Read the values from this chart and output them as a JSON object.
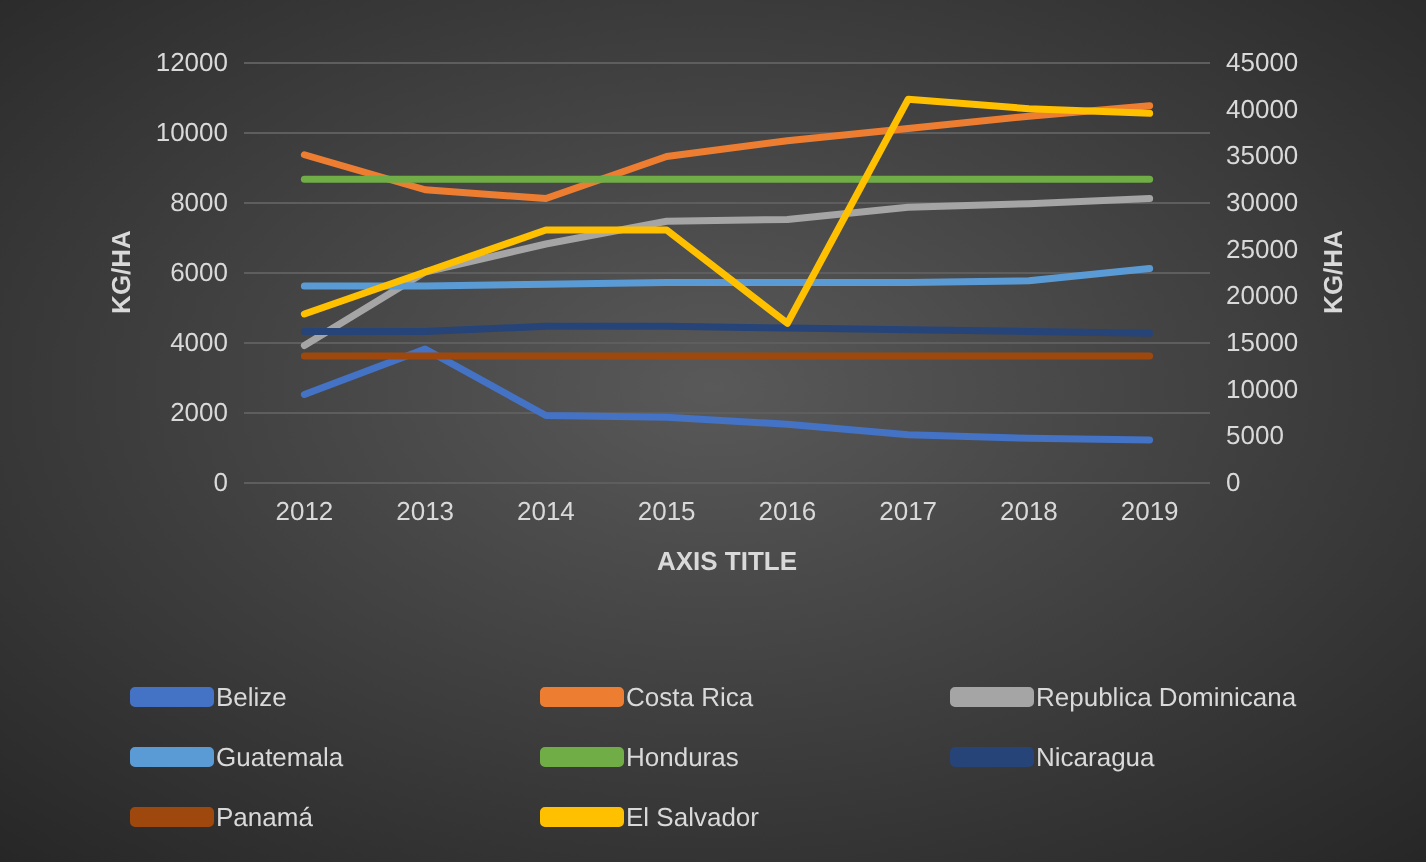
{
  "chart_data": {
    "type": "line",
    "xlabel": "AXIS TITLE",
    "ylabel": "KG/HA",
    "y2label": "KG/HA",
    "categories": [
      "2012",
      "2013",
      "2014",
      "2015",
      "2016",
      "2017",
      "2018",
      "2019"
    ],
    "ylim": [
      0,
      12000
    ],
    "yticks": [
      0,
      2000,
      4000,
      6000,
      8000,
      10000,
      12000
    ],
    "y2lim": [
      0,
      45000
    ],
    "y2ticks": [
      0,
      5000,
      10000,
      15000,
      20000,
      25000,
      30000,
      35000,
      40000,
      45000
    ],
    "grid": "y",
    "legend": "bottom",
    "marker": "none",
    "line_style": "solid",
    "series": [
      {
        "name": "Belize",
        "color": "#4472c4",
        "values": [
          2500,
          3800,
          1900,
          1850,
          1650,
          1350,
          1250,
          1200
        ]
      },
      {
        "name": "Costa Rica",
        "color": "#ed7d31",
        "values": [
          9350,
          8350,
          8100,
          9300,
          9750,
          10100,
          10450,
          10750
        ]
      },
      {
        "name": "Republica Dominicana",
        "color": "#a5a5a5",
        "values": [
          3900,
          6000,
          6800,
          7450,
          7500,
          7850,
          7950,
          8100
        ]
      },
      {
        "name": "Guatemala",
        "color": "#5b9bd5",
        "values": [
          5600,
          5600,
          5650,
          5700,
          5700,
          5700,
          5750,
          6100
        ]
      },
      {
        "name": "Honduras",
        "color": "#70ad47",
        "values": [
          8650,
          8650,
          8650,
          8650,
          8650,
          8650,
          8650,
          8650
        ]
      },
      {
        "name": "Nicaragua",
        "color": "#264478",
        "values": [
          4300,
          4300,
          4450,
          4450,
          4400,
          4350,
          4300,
          4250
        ]
      },
      {
        "name": "Panamá",
        "color": "#9e480e",
        "values": [
          3600,
          3600,
          3600,
          3600,
          3600,
          3600,
          3600,
          3600
        ]
      },
      {
        "name": "El Salvador",
        "color": "#ffc000",
        "axis": "y2",
        "values": [
          18000,
          22500,
          27000,
          27000,
          17000,
          41000,
          40000,
          39500
        ]
      }
    ]
  }
}
